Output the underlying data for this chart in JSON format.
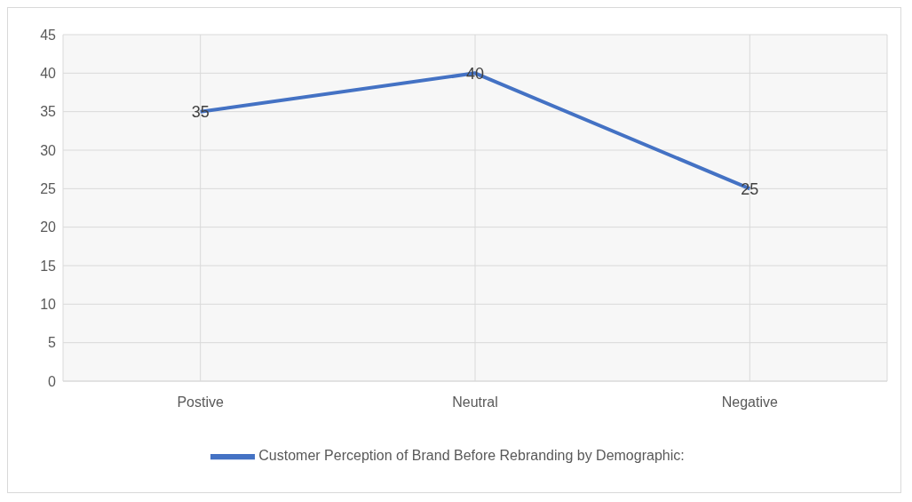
{
  "chart_data": {
    "type": "line",
    "categories": [
      "Postive",
      "Neutral",
      "Negative"
    ],
    "series": [
      {
        "name": "Customer Perception of Brand Before Rebranding by Demographic:",
        "color": "#4472c4",
        "values": [
          35,
          40,
          25
        ]
      }
    ],
    "ylim": [
      0,
      45
    ],
    "yticks": [
      0,
      5,
      10,
      15,
      20,
      25,
      30,
      35,
      40,
      45
    ],
    "grid": true,
    "legend": "bottom",
    "data_labels": true,
    "marker": "none",
    "line_style": "solid"
  }
}
